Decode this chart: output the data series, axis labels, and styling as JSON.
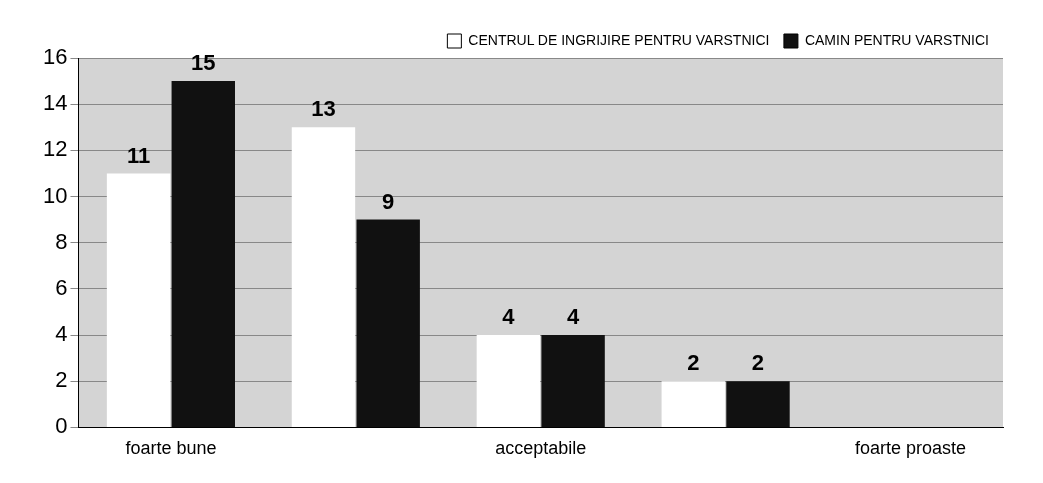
{
  "chart_data": {
    "type": "bar",
    "categories": [
      "foarte bune",
      null,
      "acceptabile",
      null,
      "foarte proaste"
    ],
    "series": [
      {
        "name": "CENTRUL DE INGRIJIRE PENTRU VARSTNICI",
        "color": "#ffffff",
        "values": [
          11,
          13,
          4,
          2,
          0
        ],
        "value_labels": [
          "11",
          "13",
          "4",
          "2",
          null
        ]
      },
      {
        "name": "CAMIN PENTRU VARSTNICI",
        "color": "#111111",
        "values": [
          15,
          9,
          4,
          2,
          0
        ],
        "value_labels": [
          "15",
          "9",
          "4",
          "2",
          null
        ]
      }
    ],
    "ylim": [
      0,
      16
    ],
    "yticks": [
      0,
      2,
      4,
      6,
      8,
      10,
      12,
      14,
      16
    ],
    "grid": "y",
    "legend": "top right"
  }
}
